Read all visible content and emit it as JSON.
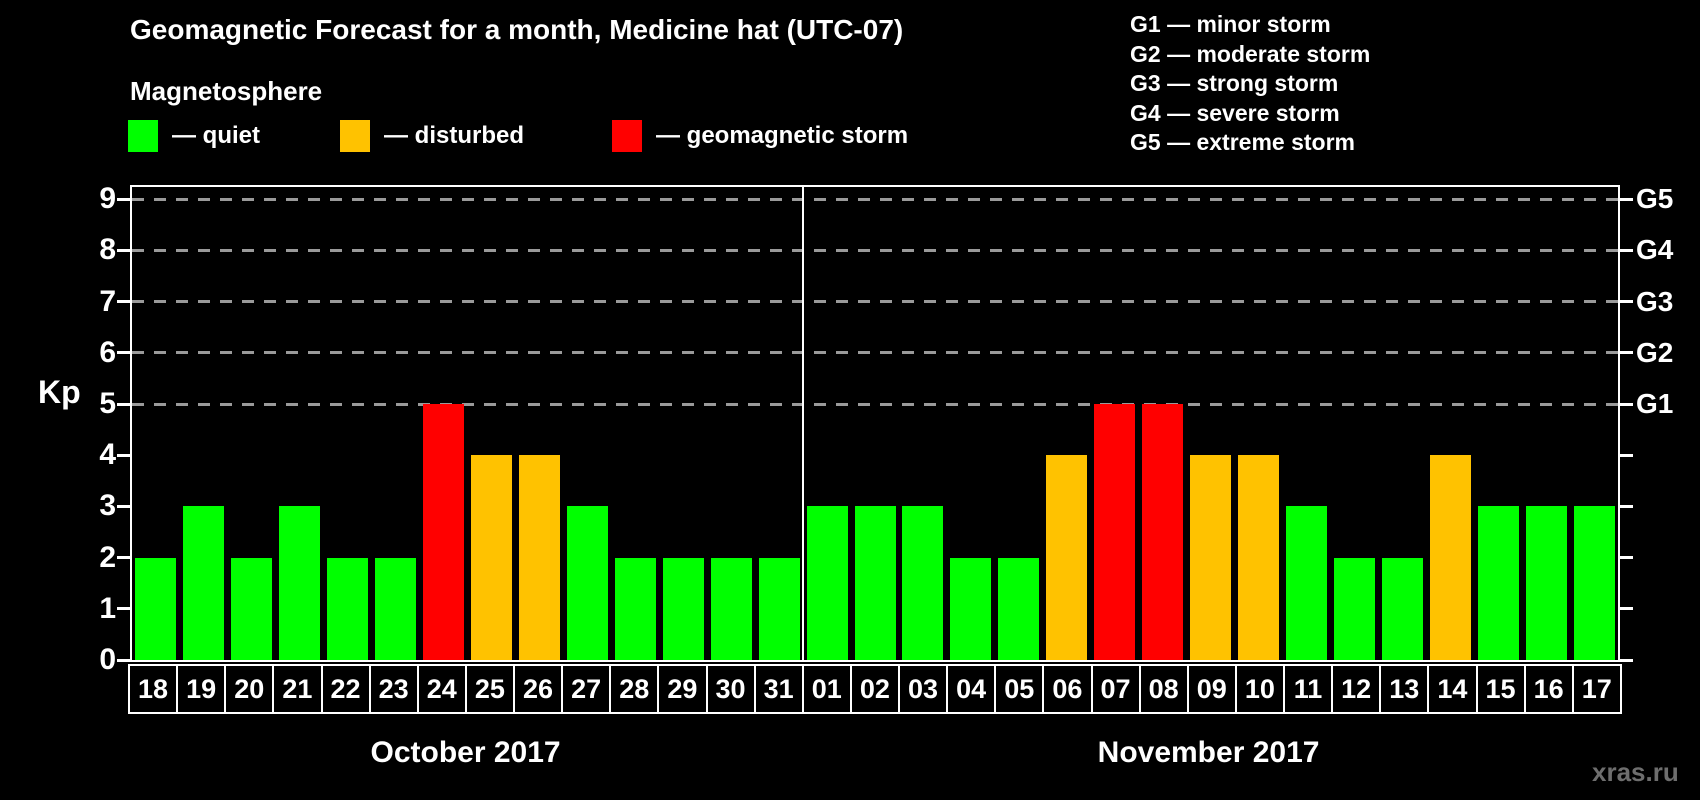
{
  "title": "Geomagnetic Forecast for a month, Medicine hat (UTC-07)",
  "subtitle": "Magnetosphere",
  "legend": [
    {
      "name": "quiet",
      "label": "— quiet",
      "color": "#00ff00"
    },
    {
      "name": "disturbed",
      "label": "— disturbed",
      "color": "#ffc200"
    },
    {
      "name": "storm",
      "label": "— geomagnetic storm",
      "color": "#ff0000"
    }
  ],
  "storm_scale_legend": [
    "G1 — minor storm",
    "G2 — moderate storm",
    "G3 — strong storm",
    "G4 — severe storm",
    "G5 — extreme storm"
  ],
  "watermark": "xras.ru",
  "chart_data": {
    "type": "bar",
    "ylabel": "Kp",
    "ylim": [
      0,
      9.3
    ],
    "y_ticks": [
      0,
      1,
      2,
      3,
      4,
      5,
      6,
      7,
      8,
      9
    ],
    "gridlines": [
      5,
      6,
      7,
      8,
      9
    ],
    "right_axis_labels": [
      {
        "label": "G1",
        "kp": 5
      },
      {
        "label": "G2",
        "kp": 6
      },
      {
        "label": "G3",
        "kp": 7
      },
      {
        "label": "G4",
        "kp": 8
      },
      {
        "label": "G5",
        "kp": 9
      }
    ],
    "colors": {
      "quiet": "#00ff00",
      "disturbed": "#ffc200",
      "storm": "#ff0000"
    },
    "months": [
      {
        "label": "October 2017",
        "days": [
          {
            "date": "18",
            "kp": 2,
            "status": "quiet"
          },
          {
            "date": "19",
            "kp": 3,
            "status": "quiet"
          },
          {
            "date": "20",
            "kp": 2,
            "status": "quiet"
          },
          {
            "date": "21",
            "kp": 3,
            "status": "quiet"
          },
          {
            "date": "22",
            "kp": 2,
            "status": "quiet"
          },
          {
            "date": "23",
            "kp": 2,
            "status": "quiet"
          },
          {
            "date": "24",
            "kp": 5,
            "status": "storm"
          },
          {
            "date": "25",
            "kp": 4,
            "status": "disturbed"
          },
          {
            "date": "26",
            "kp": 4,
            "status": "disturbed"
          },
          {
            "date": "27",
            "kp": 3,
            "status": "quiet"
          },
          {
            "date": "28",
            "kp": 2,
            "status": "quiet"
          },
          {
            "date": "29",
            "kp": 2,
            "status": "quiet"
          },
          {
            "date": "30",
            "kp": 2,
            "status": "quiet"
          },
          {
            "date": "31",
            "kp": 2,
            "status": "quiet"
          }
        ]
      },
      {
        "label": "November 2017",
        "days": [
          {
            "date": "01",
            "kp": 3,
            "status": "quiet"
          },
          {
            "date": "02",
            "kp": 3,
            "status": "quiet"
          },
          {
            "date": "03",
            "kp": 3,
            "status": "quiet"
          },
          {
            "date": "04",
            "kp": 2,
            "status": "quiet"
          },
          {
            "date": "05",
            "kp": 2,
            "status": "quiet"
          },
          {
            "date": "06",
            "kp": 4,
            "status": "disturbed"
          },
          {
            "date": "07",
            "kp": 5,
            "status": "storm"
          },
          {
            "date": "08",
            "kp": 5,
            "status": "storm"
          },
          {
            "date": "09",
            "kp": 4,
            "status": "disturbed"
          },
          {
            "date": "10",
            "kp": 4,
            "status": "disturbed"
          },
          {
            "date": "11",
            "kp": 3,
            "status": "quiet"
          },
          {
            "date": "12",
            "kp": 2,
            "status": "quiet"
          },
          {
            "date": "13",
            "kp": 2,
            "status": "quiet"
          },
          {
            "date": "14",
            "kp": 4,
            "status": "disturbed"
          },
          {
            "date": "15",
            "kp": 3,
            "status": "quiet"
          },
          {
            "date": "16",
            "kp": 3,
            "status": "quiet"
          },
          {
            "date": "17",
            "kp": 3,
            "status": "quiet"
          }
        ]
      }
    ]
  }
}
